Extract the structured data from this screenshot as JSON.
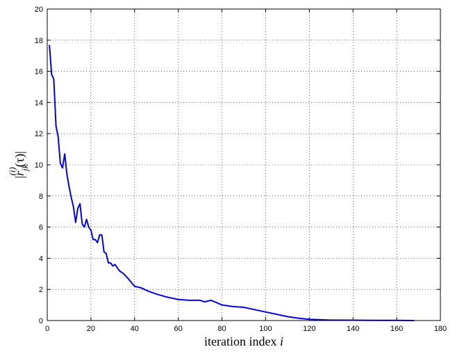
{
  "chart_data": {
    "type": "line",
    "title": "",
    "xlabel": "iteration index",
    "xlabel_var": "i",
    "ylabel_parts": {
      "open": "|",
      "r": "r",
      "sup": "(i)",
      "sub": "jk",
      "arg": "(τ)",
      "close": "|"
    },
    "xlim": [
      0,
      180
    ],
    "ylim": [
      0,
      20
    ],
    "xticks": [
      0,
      20,
      40,
      60,
      80,
      100,
      120,
      140,
      160,
      180
    ],
    "yticks": [
      0,
      2,
      4,
      6,
      8,
      10,
      12,
      14,
      16,
      18,
      20
    ],
    "grid": true,
    "series": [
      {
        "color": "#0000ee",
        "x": [
          1,
          2,
          3,
          4,
          5,
          6,
          7,
          8,
          9,
          10,
          11,
          12,
          13,
          14,
          15,
          16,
          17,
          18,
          19,
          20,
          21,
          22,
          23,
          24,
          25,
          26,
          27,
          28,
          29,
          30,
          31,
          32,
          33,
          35,
          37,
          40,
          43,
          46,
          50,
          55,
          60,
          65,
          70,
          72,
          75,
          80,
          85,
          90,
          95,
          100,
          105,
          110,
          115,
          120,
          125,
          130,
          140,
          150,
          160,
          168
        ],
        "y": [
          17.7,
          15.8,
          15.5,
          12.5,
          11.8,
          10.1,
          9.8,
          10.7,
          9.4,
          8.6,
          7.9,
          7.3,
          6.3,
          7.2,
          7.5,
          6.2,
          6.0,
          6.5,
          6.0,
          5.8,
          5.2,
          5.2,
          5.0,
          5.5,
          5.5,
          4.4,
          4.3,
          3.7,
          3.7,
          3.5,
          3.6,
          3.4,
          3.2,
          3.0,
          2.7,
          2.2,
          2.1,
          1.9,
          1.7,
          1.5,
          1.35,
          1.3,
          1.3,
          1.2,
          1.3,
          1.0,
          0.9,
          0.85,
          0.7,
          0.55,
          0.4,
          0.25,
          0.15,
          0.08,
          0.05,
          0.03,
          0.02,
          0.01,
          0.01,
          0.0
        ]
      }
    ]
  }
}
